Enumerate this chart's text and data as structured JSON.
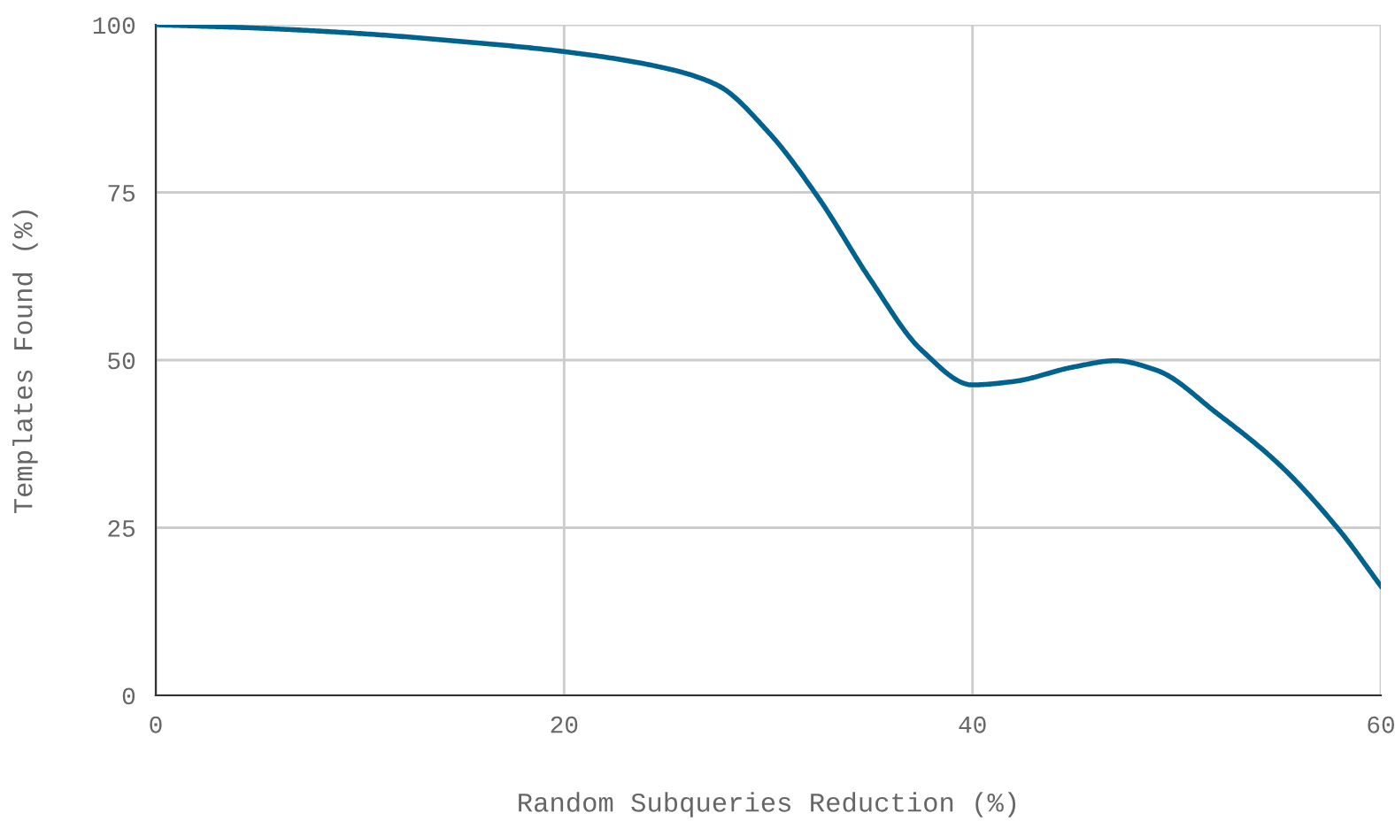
{
  "chart_data": {
    "type": "line",
    "xlabel": "Random Subqueries Reduction (%)",
    "ylabel": "Templates Found (%)",
    "x": [
      0,
      5,
      10,
      15,
      20,
      25,
      27.5,
      30,
      32.5,
      35,
      37.5,
      40,
      42,
      45,
      47,
      49,
      52,
      55,
      58,
      60
    ],
    "series": [
      {
        "color": "#00628f",
        "values": [
          100,
          99.5,
          98.7,
          97.5,
          96,
          93.5,
          91,
          84,
          74,
          62,
          51.5,
          46.3,
          46.8,
          49,
          49.9,
          48.5,
          42,
          34.5,
          24.5,
          16.3
        ]
      }
    ],
    "xlim": [
      0,
      60
    ],
    "xticks": [
      0,
      20,
      40,
      60
    ],
    "ylim": [
      0,
      100
    ],
    "yticks": [
      0,
      25,
      50,
      75,
      100
    ],
    "grid": true,
    "marker": "none",
    "line_style": "solid"
  }
}
